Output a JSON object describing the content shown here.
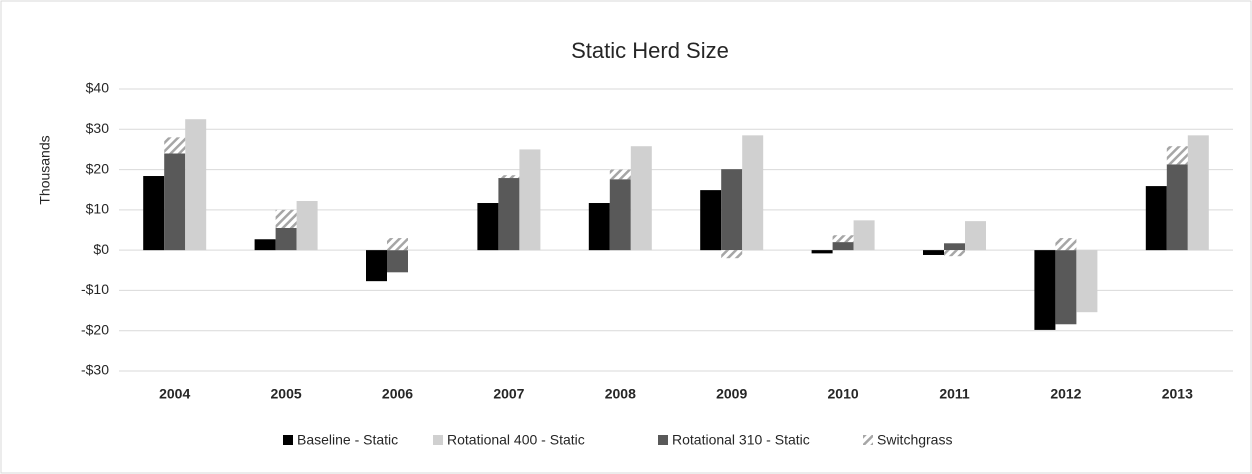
{
  "chart_data": {
    "type": "bar",
    "title": "Static Herd Size",
    "y_label": "Thousands",
    "categories": [
      "2004",
      "2005",
      "2006",
      "2007",
      "2008",
      "2009",
      "2010",
      "2011",
      "2012",
      "2013"
    ],
    "series": [
      {
        "name": "Baseline - Static",
        "color": "#000000",
        "values": [
          18.4,
          2.7,
          -7.7,
          11.7,
          11.7,
          14.9,
          -0.8,
          -1.2,
          -19.8,
          15.9
        ]
      },
      {
        "name": "Rotational 400 - Static",
        "color": "#d0d0d0",
        "values": [
          32.5,
          12.2,
          0,
          25,
          25.8,
          28.5,
          7.4,
          7.2,
          -15.4,
          28.5
        ]
      },
      {
        "name": "Rotational 310 - Static",
        "color": "#595959",
        "values": [
          24,
          5.5,
          -5.5,
          17.9,
          17.6,
          20.1,
          2,
          1.7,
          -18.4,
          21.3
        ]
      },
      {
        "name": "Switchgrass",
        "color": "#a6a6a6",
        "pattern": "hatch",
        "stacked_on": "Rotational 310 - Static",
        "values": [
          4,
          4.5,
          3,
          0.7,
          2.4,
          -2,
          1.7,
          -1.5,
          3,
          4.5
        ]
      }
    ],
    "ylim": [
      -30,
      40
    ],
    "yticks": [
      {
        "value": -30,
        "label": "-$30"
      },
      {
        "value": -20,
        "label": "-$20"
      },
      {
        "value": -10,
        "label": "-$10"
      },
      {
        "value": 0,
        "label": "$0"
      },
      {
        "value": 10,
        "label": "$10"
      },
      {
        "value": 20,
        "label": "$20"
      },
      {
        "value": 30,
        "label": "$30"
      },
      {
        "value": 40,
        "label": "$40"
      }
    ],
    "grid": true,
    "legend": "bottom"
  }
}
